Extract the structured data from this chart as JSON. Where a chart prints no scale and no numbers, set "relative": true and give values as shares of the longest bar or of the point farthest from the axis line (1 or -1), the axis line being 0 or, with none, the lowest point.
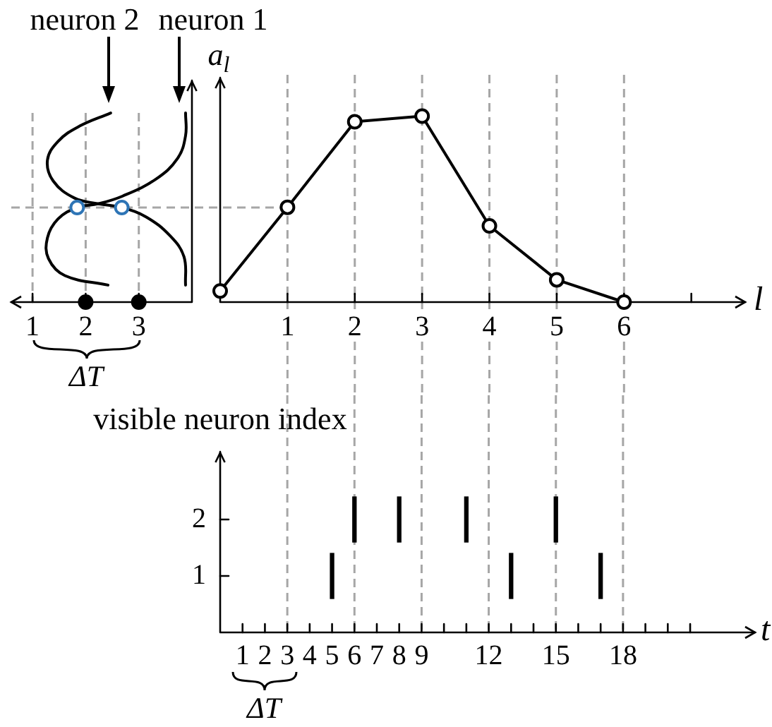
{
  "chart_data": [
    {
      "type": "line",
      "relative": true,
      "xlim": [
        0.6,
        4.0
      ],
      "xticks": [
        1,
        2,
        3
      ],
      "marker": "none",
      "series": [
        {
          "name": "neuron 2",
          "color": "#000000",
          "x": [
            2.47,
            1.88,
            1.48,
            1.28,
            1.39,
            1.79,
            2.24,
            2.68,
            3.14,
            3.59,
            3.85,
            3.88
          ],
          "values": [
            1.0,
            0.93,
            0.85,
            0.75,
            0.64,
            0.55,
            0.52,
            0.5,
            0.45,
            0.35,
            0.24,
            0.09
          ]
        },
        {
          "name": "neuron 1",
          "color": "#000000",
          "x": [
            3.88,
            3.88,
            3.73,
            3.32,
            2.69,
            2.24,
            1.84,
            1.48,
            1.28,
            1.3,
            1.61,
            2.42
          ],
          "values": [
            1.0,
            0.88,
            0.76,
            0.65,
            0.56,
            0.52,
            0.5,
            0.44,
            0.34,
            0.23,
            0.14,
            0.09
          ]
        },
        {
          "type": "scatter",
          "marker": "circle",
          "color": "#2e75b6",
          "x": [
            1.84,
            2.68
          ],
          "values": [
            0.5,
            0.5
          ]
        },
        {
          "type": "scatter",
          "marker": "circle",
          "color": "#000000",
          "x": [
            2,
            3
          ],
          "values": [
            0,
            0
          ]
        }
      ],
      "ref_lines": [
        {
          "axis": "x",
          "value": 1,
          "color": "#a6a6a6",
          "line_style": "dashed"
        },
        {
          "axis": "x",
          "value": 2,
          "color": "#a6a6a6",
          "line_style": "dashed"
        },
        {
          "axis": "x",
          "value": 3,
          "color": "#a6a6a6",
          "line_style": "dashed"
        },
        {
          "axis": "y",
          "value": 0.5,
          "color": "#a6a6a6",
          "line_style": "dashed"
        }
      ],
      "annotations": [
        "ΔT"
      ]
    },
    {
      "type": "line",
      "relative": true,
      "x": [
        0,
        1,
        2,
        3,
        4,
        5,
        6
      ],
      "values": [
        0.06,
        0.51,
        0.97,
        1,
        0.41,
        0.12,
        0
      ],
      "color": "#000000",
      "marker": "circle",
      "xlim": [
        0,
        7.8
      ],
      "xticks": [
        1,
        2,
        3,
        4,
        5,
        6,
        {
          "value": 7,
          "label": null
        }
      ],
      "xlabel": "l",
      "ylabel": "a$_{l}$",
      "ref_lines": [
        {
          "axis": "x",
          "value": 1,
          "color": "#a6a6a6",
          "line_style": "dashed"
        },
        {
          "axis": "x",
          "value": 2,
          "color": "#a6a6a6",
          "line_style": "dashed"
        },
        {
          "axis": "x",
          "value": 3,
          "color": "#a6a6a6",
          "line_style": "dashed"
        },
        {
          "axis": "x",
          "value": 4,
          "color": "#a6a6a6",
          "line_style": "dashed"
        },
        {
          "axis": "x",
          "value": 5,
          "color": "#a6a6a6",
          "line_style": "dashed"
        },
        {
          "axis": "x",
          "value": 6,
          "color": "#a6a6a6",
          "line_style": "dashed"
        }
      ]
    },
    {
      "type": "bar",
      "x": [
        5,
        6,
        8,
        11,
        13,
        15,
        17
      ],
      "base": [
        0.6,
        1.6,
        1.6,
        1.6,
        0.6,
        1.6,
        0.6
      ],
      "values": [
        0.8,
        0.8,
        0.8,
        0.8,
        0.8,
        0.8,
        0.8
      ],
      "color": "#000000",
      "xlim": [
        0,
        23.9
      ],
      "ylim": [
        0,
        3.2
      ],
      "xticks": [
        1,
        2,
        3,
        4,
        5,
        6,
        7,
        8,
        9,
        {
          "value": 10,
          "label": null
        },
        {
          "value": 11,
          "label": null
        },
        12,
        {
          "value": 13,
          "label": null
        },
        {
          "value": 14,
          "label": null
        },
        15,
        {
          "value": 16,
          "label": null
        },
        {
          "value": 17,
          "label": null
        },
        18,
        {
          "value": 19,
          "label": null
        },
        {
          "value": 20,
          "label": null
        },
        {
          "value": 21,
          "label": null
        }
      ],
      "yticks": [
        1,
        2
      ],
      "xlabel": "t",
      "ylabel": "visible neuron index",
      "ref_lines": [
        {
          "axis": "x",
          "value": 3,
          "color": "#a6a6a6",
          "line_style": "dashed"
        },
        {
          "axis": "x",
          "value": 6,
          "color": "#a6a6a6",
          "line_style": "dashed"
        },
        {
          "axis": "x",
          "value": 9,
          "color": "#a6a6a6",
          "line_style": "dashed"
        },
        {
          "axis": "x",
          "value": 12,
          "color": "#a6a6a6",
          "line_style": "dashed"
        },
        {
          "axis": "x",
          "value": 15,
          "color": "#a6a6a6",
          "line_style": "dashed"
        },
        {
          "axis": "x",
          "value": 18,
          "color": "#a6a6a6",
          "line_style": "dashed"
        }
      ],
      "annotations": [
        "ΔT"
      ]
    }
  ]
}
